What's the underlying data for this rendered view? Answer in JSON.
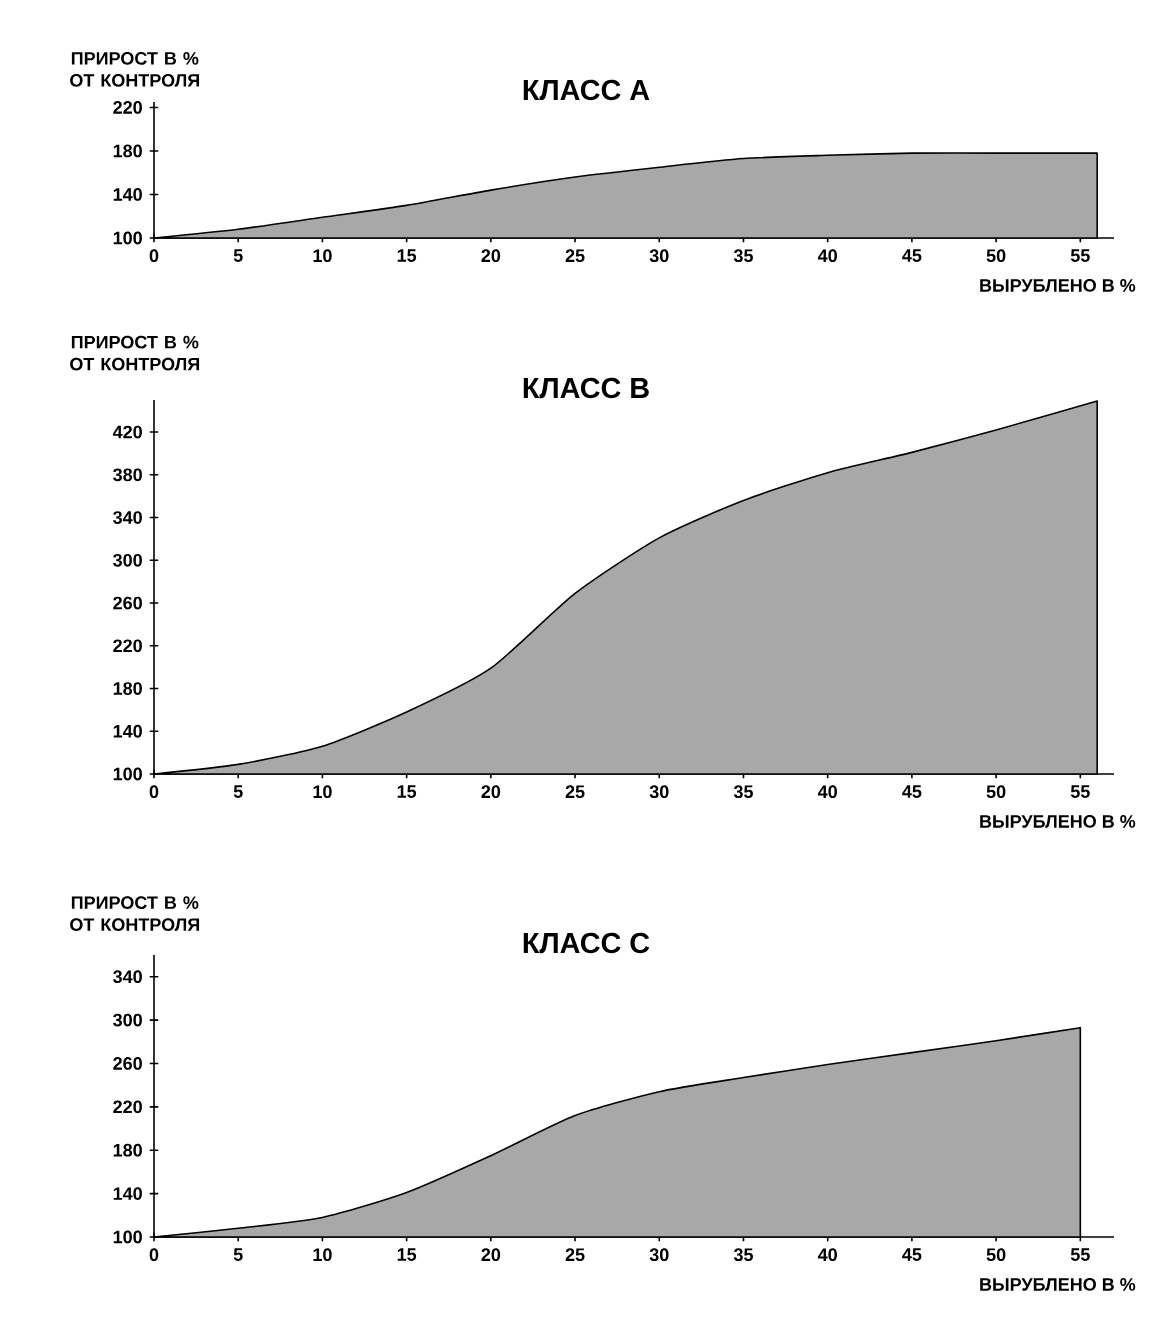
{
  "chart_data": [
    {
      "type": "area",
      "title": "КЛАСС А",
      "ylabel": "ПРИРОСТ В % ОТ КОНТРОЛЯ",
      "xlabel": "ВЫРУБЛЕНО В %",
      "color": "#a8a8a8",
      "x": [
        0,
        5,
        10,
        15,
        20,
        25,
        30,
        35,
        40,
        45,
        50,
        56
      ],
      "values": [
        100,
        108,
        119,
        130,
        144,
        156,
        165,
        173,
        176,
        178,
        178,
        178
      ],
      "xlim": [
        0,
        57
      ],
      "ylim": [
        100,
        225
      ],
      "xticks": [
        0,
        5,
        10,
        15,
        20,
        25,
        30,
        35,
        40,
        45,
        50,
        55
      ],
      "yticks": [
        100,
        140,
        180,
        220
      ]
    },
    {
      "type": "area",
      "title": "КЛАСС В",
      "ylabel": "ПРИРОСТ В % ОТ КОНТРОЛЯ",
      "xlabel": "ВЫРУБЛЕНО В %",
      "color": "#a8a8a8",
      "x": [
        0,
        5,
        10,
        15,
        20,
        25,
        30,
        35,
        40,
        45,
        50,
        56
      ],
      "values": [
        100,
        109,
        126,
        158,
        199,
        269,
        321,
        356,
        382,
        401,
        422,
        449
      ],
      "xlim": [
        0,
        57
      ],
      "ylim": [
        100,
        450
      ],
      "xticks": [
        0,
        5,
        10,
        15,
        20,
        25,
        30,
        35,
        40,
        45,
        50,
        55
      ],
      "yticks": [
        100,
        140,
        180,
        220,
        260,
        300,
        340,
        380,
        420
      ]
    },
    {
      "type": "area",
      "title": "КЛАСС С",
      "ylabel": "ПРИРОСТ В % ОТ КОНТРОЛЯ",
      "xlabel": "ВЫРУБЛЕНО В %",
      "color": "#a8a8a8",
      "x": [
        0,
        5,
        10,
        15,
        20,
        25,
        30,
        35,
        40,
        45,
        50,
        55
      ],
      "values": [
        100,
        108,
        118,
        141,
        175,
        212,
        234,
        247,
        259,
        270,
        281,
        293
      ],
      "xlim": [
        0,
        57
      ],
      "ylim": [
        100,
        360
      ],
      "xticks": [
        0,
        5,
        10,
        15,
        20,
        25,
        30,
        35,
        40,
        45,
        50,
        55
      ],
      "yticks": [
        100,
        140,
        180,
        220,
        260,
        300,
        340
      ]
    }
  ]
}
